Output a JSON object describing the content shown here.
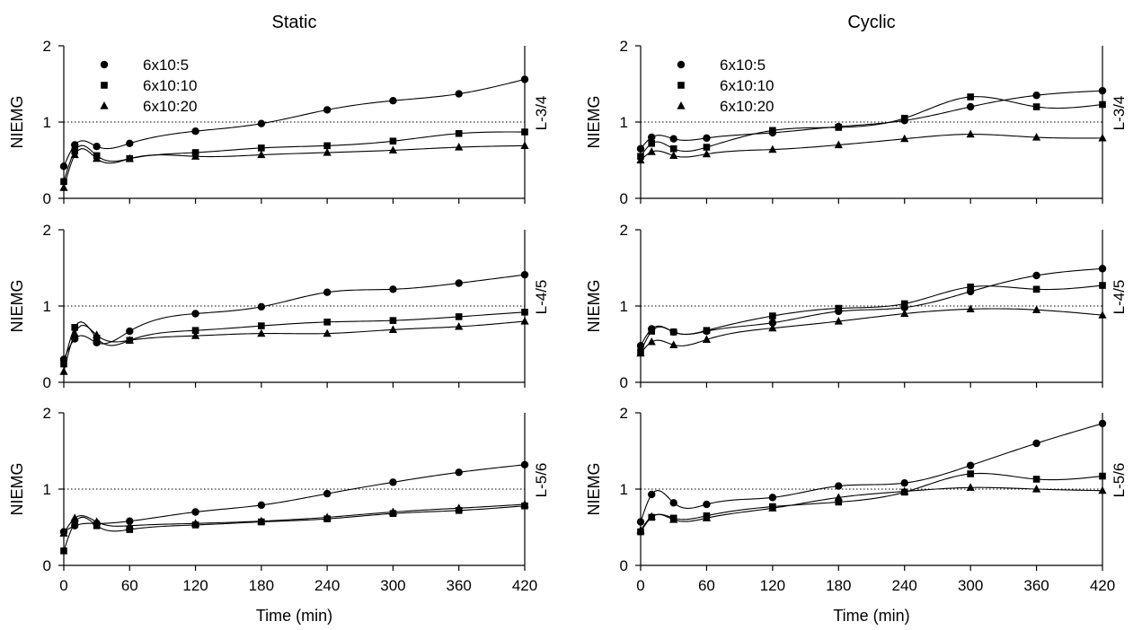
{
  "figure": {
    "column_titles": [
      "Static",
      "Cyclic"
    ],
    "row_labels": [
      "L-3/4",
      "L-4/5",
      "L-5/6"
    ],
    "ylabel": "NIEMG",
    "xlabel": "Time (min)",
    "x_ticks": [
      0,
      60,
      120,
      180,
      240,
      300,
      360,
      420
    ],
    "y_ticks": [
      0,
      1,
      2
    ],
    "legend": [
      "6x10:5",
      "6x10:10",
      "6x10:20"
    ],
    "markers": [
      "circle",
      "square",
      "triangle"
    ],
    "reference_line": 1,
    "colors": {
      "series": "#000000",
      "axes": "#000000",
      "background": "#ffffff"
    }
  },
  "chart_data": [
    {
      "type": "scatter",
      "title": "Static",
      "row_label": "L-3/4",
      "xlabel": "",
      "ylabel": "NIEMG",
      "xlim": [
        0,
        420
      ],
      "ylim": [
        0,
        2
      ],
      "legend": "top-left",
      "x": [
        0,
        10,
        30,
        60,
        120,
        180,
        240,
        300,
        360,
        420
      ],
      "series": [
        {
          "name": "6x10:5",
          "marker": "circle",
          "values": [
            0.42,
            0.7,
            0.68,
            0.72,
            0.88,
            0.98,
            1.16,
            1.28,
            1.37,
            1.56
          ]
        },
        {
          "name": "6x10:10",
          "marker": "square",
          "values": [
            0.22,
            0.62,
            0.56,
            0.52,
            0.6,
            0.66,
            0.69,
            0.75,
            0.85,
            0.87
          ]
        },
        {
          "name": "6x10:20",
          "marker": "triangle",
          "values": [
            0.14,
            0.57,
            0.52,
            0.52,
            0.55,
            0.57,
            0.6,
            0.63,
            0.67,
            0.69
          ]
        }
      ]
    },
    {
      "type": "scatter",
      "title": "Static",
      "row_label": "L-4/5",
      "xlabel": "",
      "ylabel": "NIEMG",
      "xlim": [
        0,
        420
      ],
      "ylim": [
        0,
        2
      ],
      "x": [
        0,
        10,
        30,
        60,
        120,
        180,
        240,
        300,
        360,
        420
      ],
      "series": [
        {
          "name": "6x10:5",
          "marker": "circle",
          "values": [
            0.3,
            0.57,
            0.52,
            0.67,
            0.9,
            0.99,
            1.18,
            1.22,
            1.3,
            1.41
          ]
        },
        {
          "name": "6x10:10",
          "marker": "square",
          "values": [
            0.24,
            0.72,
            0.58,
            0.55,
            0.68,
            0.74,
            0.79,
            0.81,
            0.86,
            0.92
          ]
        },
        {
          "name": "6x10:20",
          "marker": "triangle",
          "values": [
            0.14,
            0.64,
            0.62,
            0.55,
            0.61,
            0.64,
            0.64,
            0.69,
            0.73,
            0.8
          ]
        }
      ]
    },
    {
      "type": "scatter",
      "title": "Static",
      "row_label": "L-5/6",
      "xlabel": "Time (min)",
      "ylabel": "NIEMG",
      "xlim": [
        0,
        420
      ],
      "ylim": [
        0,
        2
      ],
      "x": [
        0,
        10,
        30,
        60,
        120,
        180,
        240,
        300,
        360,
        420
      ],
      "series": [
        {
          "name": "6x10:5",
          "marker": "circle",
          "values": [
            0.44,
            0.52,
            0.55,
            0.58,
            0.7,
            0.79,
            0.94,
            1.09,
            1.22,
            1.32
          ]
        },
        {
          "name": "6x10:10",
          "marker": "square",
          "values": [
            0.19,
            0.56,
            0.52,
            0.47,
            0.53,
            0.57,
            0.61,
            0.68,
            0.72,
            0.78
          ]
        },
        {
          "name": "6x10:20",
          "marker": "triangle",
          "values": [
            0.42,
            0.62,
            0.57,
            0.52,
            0.55,
            0.58,
            0.63,
            0.7,
            0.75,
            0.8
          ]
        }
      ]
    },
    {
      "type": "scatter",
      "title": "Cyclic",
      "row_label": "L-3/4",
      "xlabel": "",
      "ylabel": "NIEMG",
      "xlim": [
        0,
        420
      ],
      "ylim": [
        0,
        2
      ],
      "legend": "top-left",
      "x": [
        0,
        10,
        30,
        60,
        120,
        180,
        240,
        300,
        360,
        420
      ],
      "series": [
        {
          "name": "6x10:5",
          "marker": "circle",
          "values": [
            0.65,
            0.8,
            0.78,
            0.79,
            0.86,
            0.94,
            1.02,
            1.2,
            1.35,
            1.41
          ]
        },
        {
          "name": "6x10:10",
          "marker": "square",
          "values": [
            0.55,
            0.72,
            0.65,
            0.67,
            0.89,
            0.93,
            1.05,
            1.33,
            1.2,
            1.23
          ]
        },
        {
          "name": "6x10:20",
          "marker": "triangle",
          "values": [
            0.5,
            0.61,
            0.56,
            0.58,
            0.64,
            0.7,
            0.78,
            0.84,
            0.8,
            0.79
          ]
        }
      ]
    },
    {
      "type": "scatter",
      "title": "Cyclic",
      "row_label": "L-4/5",
      "xlabel": "",
      "ylabel": "NIEMG",
      "xlim": [
        0,
        420
      ],
      "ylim": [
        0,
        2
      ],
      "x": [
        0,
        10,
        30,
        60,
        120,
        180,
        240,
        300,
        360,
        420
      ],
      "series": [
        {
          "name": "6x10:5",
          "marker": "circle",
          "values": [
            0.48,
            0.7,
            0.66,
            0.67,
            0.78,
            0.93,
            0.98,
            1.19,
            1.4,
            1.49
          ]
        },
        {
          "name": "6x10:10",
          "marker": "square",
          "values": [
            0.4,
            0.67,
            0.66,
            0.68,
            0.87,
            0.97,
            1.03,
            1.25,
            1.22,
            1.27
          ]
        },
        {
          "name": "6x10:20",
          "marker": "triangle",
          "values": [
            0.38,
            0.53,
            0.49,
            0.56,
            0.71,
            0.8,
            0.9,
            0.96,
            0.95,
            0.88
          ]
        }
      ]
    },
    {
      "type": "scatter",
      "title": "Cyclic",
      "row_label": "L-5/6",
      "xlabel": "Time (min)",
      "ylabel": "NIEMG",
      "xlim": [
        0,
        420
      ],
      "ylim": [
        0,
        2
      ],
      "x": [
        0,
        10,
        30,
        60,
        120,
        180,
        240,
        300,
        360,
        420
      ],
      "series": [
        {
          "name": "6x10:5",
          "marker": "circle",
          "values": [
            0.57,
            0.93,
            0.82,
            0.8,
            0.89,
            1.04,
            1.08,
            1.31,
            1.6,
            1.86
          ]
        },
        {
          "name": "6x10:10",
          "marker": "square",
          "values": [
            0.44,
            0.63,
            0.62,
            0.65,
            0.77,
            0.83,
            0.96,
            1.2,
            1.13,
            1.17
          ]
        },
        {
          "name": "6x10:20",
          "marker": "triangle",
          "values": [
            0.46,
            0.64,
            0.6,
            0.62,
            0.75,
            0.89,
            0.97,
            1.02,
            1.0,
            0.98
          ]
        }
      ]
    }
  ]
}
